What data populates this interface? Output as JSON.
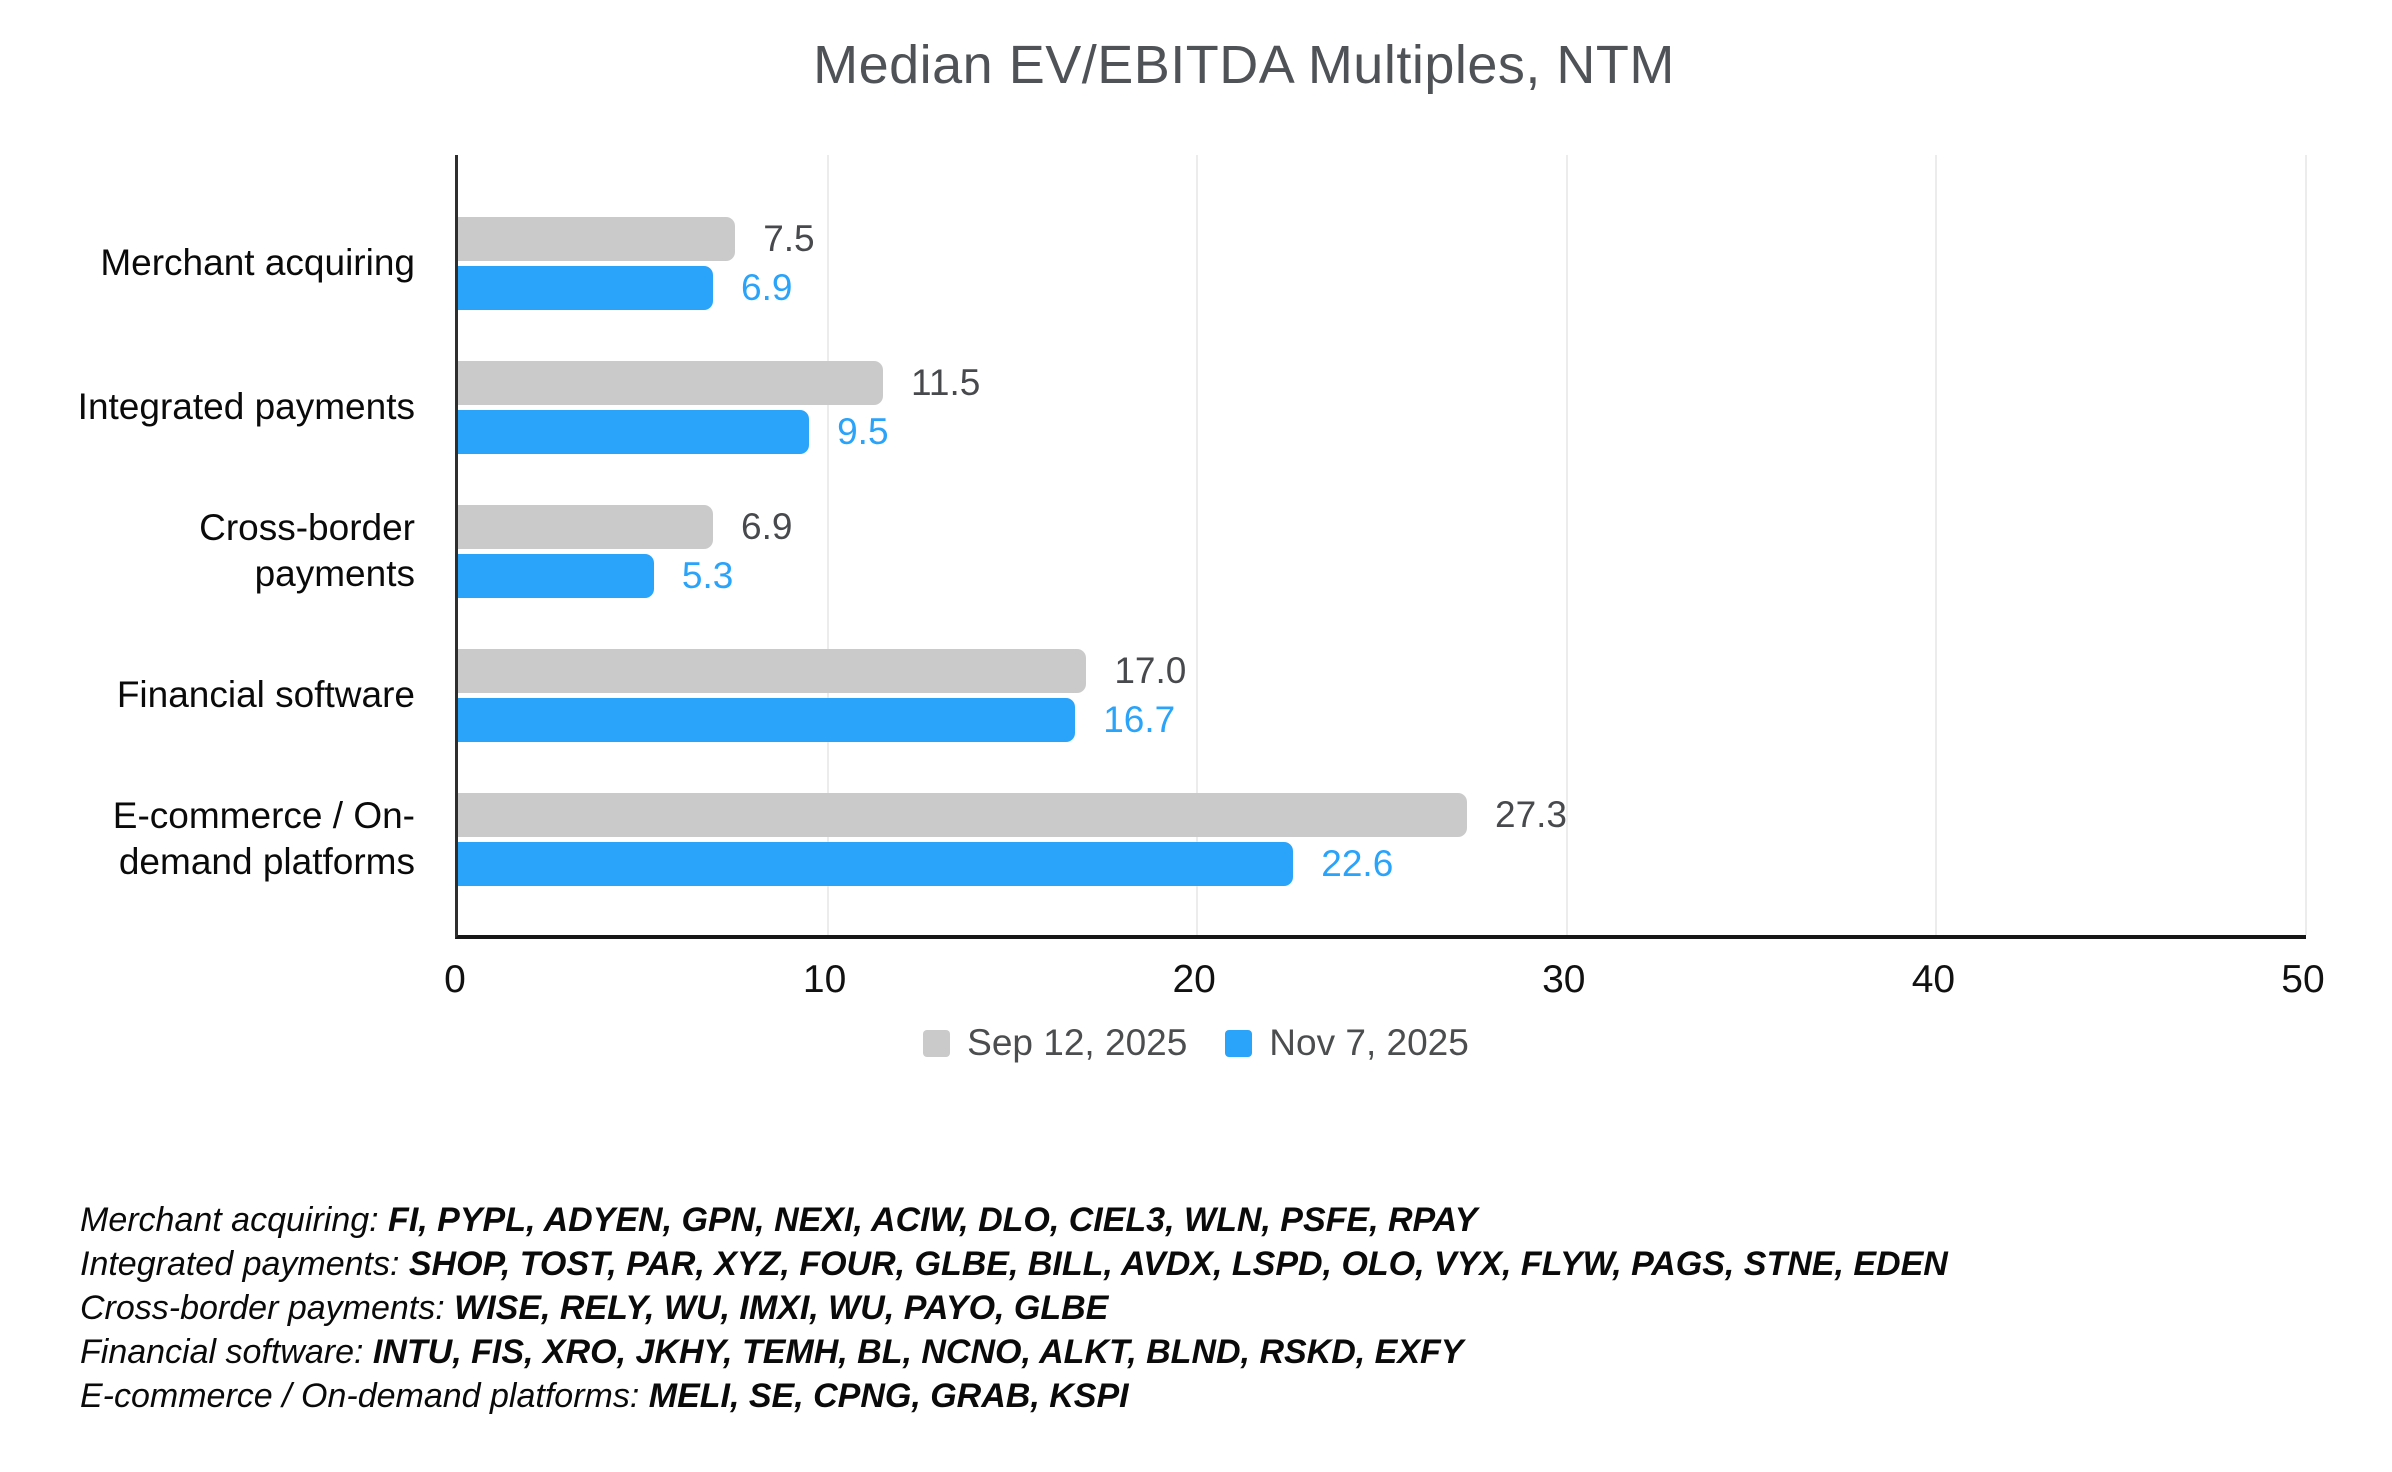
{
  "title": "Median EV/EBITDA Multiples, NTM",
  "chart_data": {
    "type": "bar",
    "orientation": "horizontal",
    "title": "Median EV/EBITDA Multiples, NTM",
    "categories": [
      "Merchant acquiring",
      "Integrated payments",
      "Cross-border payments",
      "Financial software",
      "E-commerce / On-demand platforms"
    ],
    "series": [
      {
        "name": "Sep 12, 2025",
        "color": "#cacaca",
        "label_color": "#47494c",
        "values": [
          7.5,
          11.5,
          6.9,
          17.0,
          27.3
        ]
      },
      {
        "name": "Nov 7, 2025",
        "color": "#2aa3fa",
        "label_color": "#2aa3fa",
        "values": [
          6.9,
          9.5,
          5.3,
          16.7,
          22.6
        ]
      }
    ],
    "xlim": [
      0,
      50
    ],
    "xticks": [
      0,
      10,
      20,
      30,
      40,
      50
    ],
    "grid": "vertical-light",
    "gridline_color": "#ececec",
    "legend_position": "bottom",
    "value_labels": "outside-end",
    "value_label_decimals": 1
  },
  "footnotes": [
    {
      "label": "Merchant acquiring:",
      "tickers": "FI, PYPL, ADYEN, GPN, NEXI, ACIW, DLO, CIEL3, WLN, PSFE, RPAY"
    },
    {
      "label": "Integrated payments:",
      "tickers": "SHOP, TOST, PAR, XYZ, FOUR, GLBE, BILL, AVDX, LSPD, OLO, VYX, FLYW, PAGS, STNE, EDEN"
    },
    {
      "label": "Cross-border payments:",
      "tickers": "WISE, RELY, WU, IMXI, WU, PAYO, GLBE"
    },
    {
      "label": "Financial software:",
      "tickers": "INTU, FIS, XRO, JKHY, TEMH, BL, NCNO, ALKT, BLND, RSKD, EXFY"
    },
    {
      "label": "E-commerce / On-demand platforms:",
      "tickers": "MELI, SE, CPNG, GRAB, KSPI"
    }
  ]
}
